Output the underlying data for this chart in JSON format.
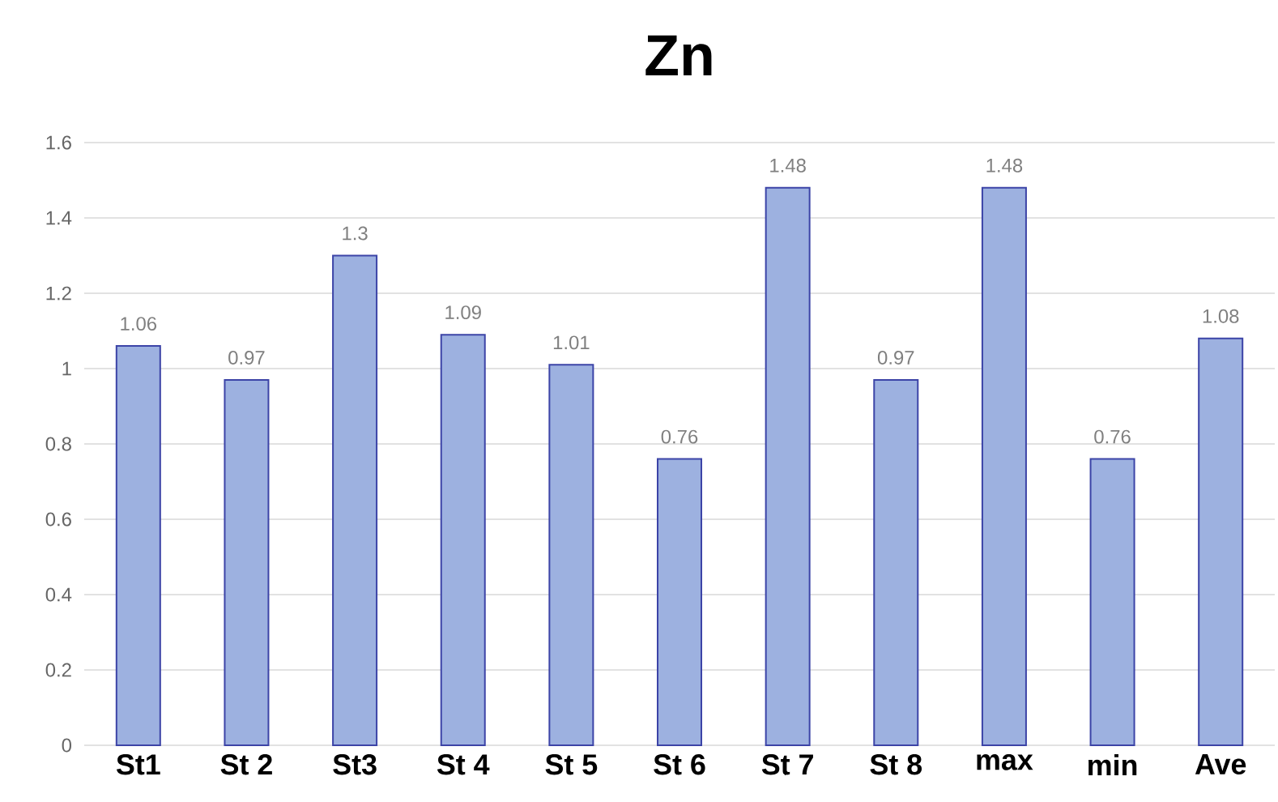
{
  "chart_data": {
    "type": "bar",
    "title": "Zn",
    "categories": [
      "St1",
      "St 2",
      "St3",
      "St 4",
      "St 5",
      "St 6",
      "St 7",
      "St 8",
      "max",
      "min",
      "Ave"
    ],
    "values": [
      1.06,
      0.97,
      1.3,
      1.09,
      1.01,
      0.76,
      1.48,
      0.97,
      1.48,
      0.76,
      1.08
    ],
    "color": "#9db1e0",
    "ylim": [
      0,
      1.6
    ],
    "yticks": [
      0,
      0.2,
      0.4,
      0.6,
      0.8,
      1,
      1.2,
      1.4,
      1.6
    ],
    "grid": "y",
    "data_labels": true
  }
}
